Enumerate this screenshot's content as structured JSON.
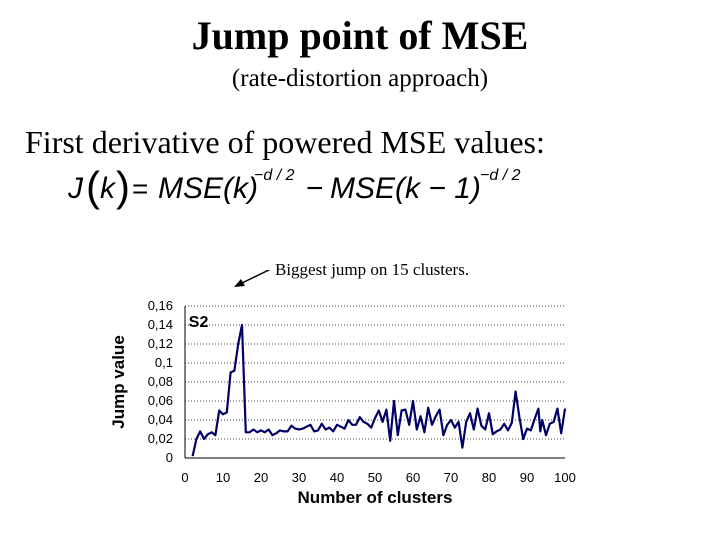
{
  "slide": {
    "title": "Jump point of MSE",
    "subtitle": "(rate-distortion approach)",
    "subheading": "First derivative of powered MSE values:",
    "formula": {
      "lhs_fn": "J",
      "lhs_arg": "k",
      "equals": "=",
      "term1": "MSE(k)",
      "exp1": "−d / 2",
      "minus": "−",
      "term2": "MSE(k − 1)",
      "exp2": "−d / 2"
    },
    "annotation": "Biggest jump on 15 clusters."
  },
  "chart_data": {
    "type": "line",
    "title": "",
    "series_label": "S2",
    "xlabel": "Number of clusters",
    "ylabel": "Jump value",
    "xlim": [
      0,
      100
    ],
    "ylim": [
      0,
      0.16
    ],
    "xticks": [
      0,
      10,
      20,
      30,
      40,
      50,
      60,
      70,
      80,
      90,
      100
    ],
    "yticks": [
      0,
      0.02,
      0.04,
      0.06,
      0.08,
      0.1,
      0.12,
      0.14,
      0.16
    ],
    "xtick_labels": [
      "0",
      "10",
      "20",
      "30",
      "40",
      "50",
      "60",
      "70",
      "80",
      "90",
      "100"
    ],
    "ytick_labels": [
      "0",
      "0,02",
      "0,04",
      "0,06",
      "0,08",
      "0,1",
      "0,12",
      "0,14",
      "0,16"
    ],
    "grid": "horizontal dotted",
    "series": [
      {
        "name": "S2",
        "color": "#000066",
        "x": [
          2,
          3,
          4,
          5,
          6,
          7,
          8,
          9,
          10,
          11,
          12,
          13,
          14,
          15,
          16,
          17,
          18,
          19,
          20,
          21,
          22,
          23,
          24,
          25,
          26,
          27,
          28,
          29,
          30,
          31,
          32,
          33,
          34,
          35,
          36,
          37,
          38,
          39,
          40,
          41,
          42,
          43,
          44,
          45,
          46,
          47,
          48,
          49,
          50,
          51,
          52,
          53,
          54,
          55,
          56,
          57,
          58,
          59,
          60,
          61,
          62,
          63,
          64,
          65,
          66,
          67,
          68,
          69,
          70,
          71,
          72,
          73,
          74,
          75,
          76,
          77,
          78,
          79,
          80,
          81,
          82,
          83,
          84,
          85,
          86,
          87,
          88,
          89,
          90,
          91,
          92,
          93,
          93.5,
          94,
          95,
          96,
          97,
          98,
          99,
          100
        ],
        "values": [
          0.002,
          0.02,
          0.028,
          0.02,
          0.025,
          0.027,
          0.024,
          0.05,
          0.046,
          0.048,
          0.09,
          0.092,
          0.12,
          0.14,
          0.027,
          0.027,
          0.03,
          0.027,
          0.029,
          0.027,
          0.03,
          0.024,
          0.026,
          0.029,
          0.028,
          0.028,
          0.034,
          0.031,
          0.03,
          0.031,
          0.033,
          0.035,
          0.028,
          0.029,
          0.036,
          0.03,
          0.032,
          0.028,
          0.035,
          0.033,
          0.031,
          0.04,
          0.035,
          0.035,
          0.043,
          0.038,
          0.036,
          0.032,
          0.042,
          0.05,
          0.038,
          0.051,
          0.018,
          0.06,
          0.024,
          0.05,
          0.051,
          0.035,
          0.06,
          0.03,
          0.044,
          0.027,
          0.053,
          0.035,
          0.044,
          0.051,
          0.024,
          0.035,
          0.04,
          0.032,
          0.038,
          0.011,
          0.038,
          0.047,
          0.03,
          0.052,
          0.034,
          0.03,
          0.047,
          0.025,
          0.028,
          0.03,
          0.036,
          0.029,
          0.037,
          0.07,
          0.043,
          0.02,
          0.031,
          0.029,
          0.041,
          0.052,
          0.028,
          0.04,
          0.024,
          0.036,
          0.038,
          0.052,
          0.026,
          0.052
        ]
      }
    ]
  }
}
